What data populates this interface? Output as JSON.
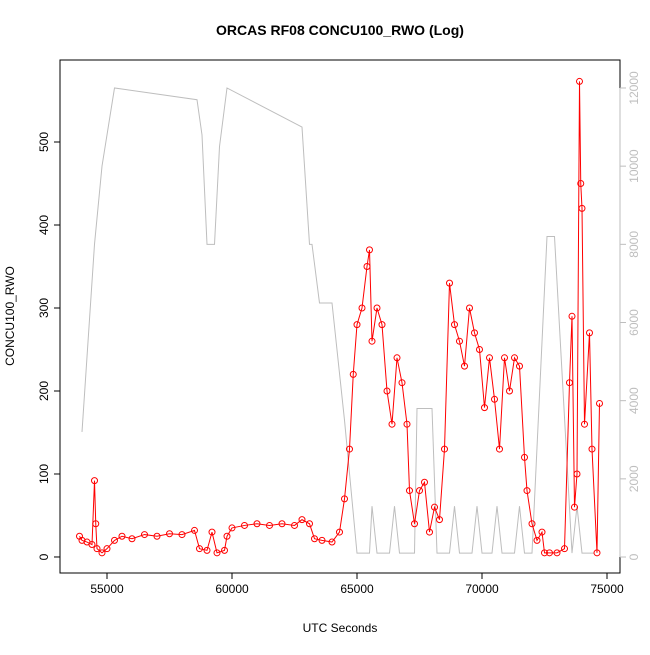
{
  "chart_data": {
    "type": "line",
    "title": "ORCAS RF08 CONCU100_RWO (Log)",
    "x_label": "UTC Seconds",
    "y_label": "CONCU100_RWO",
    "xlim": [
      53120,
      75520
    ],
    "xticks": [
      55000,
      60000,
      65000,
      70000,
      75000
    ],
    "ylim": [
      -19.3,
      598.8
    ],
    "yticks": [
      0,
      100,
      200,
      300,
      400,
      500
    ],
    "y2lim": [
      -409,
      12716
    ],
    "y2ticks": [
      0,
      2000,
      4000,
      6000,
      8000,
      10000,
      12000
    ],
    "series": [
      {
        "color": "#bebebe",
        "axis": "y2",
        "markers": false,
        "x": [
          54000,
          54500,
          54800,
          55300,
          58600,
          58800,
          59000,
          59300,
          59500,
          59800,
          62800,
          63100,
          63200,
          63500,
          64000,
          64500,
          65000,
          65500,
          65600,
          65800,
          66300,
          66500,
          66700,
          67300,
          67400,
          68000,
          68200,
          68700,
          68900,
          69100,
          69600,
          69800,
          70000,
          70400,
          70600,
          70800,
          71300,
          71500,
          71700,
          72000,
          72600,
          72900,
          73600,
          73800,
          74000,
          74500
        ],
        "values": [
          3200,
          8000,
          10000,
          12000,
          11700,
          10800,
          8000,
          8000,
          10500,
          12000,
          11000,
          8000,
          8000,
          6500,
          6500,
          3500,
          100,
          100,
          1300,
          100,
          100,
          1300,
          100,
          100,
          3800,
          3800,
          100,
          100,
          1300,
          100,
          100,
          1300,
          100,
          100,
          1300,
          100,
          100,
          1300,
          100,
          100,
          8200,
          8200,
          100,
          1300,
          100,
          100
        ]
      },
      {
        "color": "#ff0000",
        "axis": "y",
        "markers": true,
        "x": [
          53900,
          54000,
          54200,
          54400,
          54500,
          54550,
          54600,
          54800,
          55000,
          55300,
          55600,
          56000,
          56500,
          57000,
          57500,
          58000,
          58500,
          58700,
          59000,
          59200,
          59400,
          59700,
          59800,
          60000,
          60500,
          61000,
          61500,
          62000,
          62500,
          62800,
          63100,
          63300,
          63600,
          64000,
          64300,
          64500,
          64700,
          64850,
          65000,
          65200,
          65400,
          65500,
          65600,
          65800,
          66000,
          66200,
          66400,
          66600,
          66800,
          67000,
          67100,
          67300,
          67500,
          67700,
          67900,
          68100,
          68300,
          68500,
          68700,
          68900,
          69100,
          69300,
          69500,
          69700,
          69900,
          70100,
          70300,
          70500,
          70700,
          70900,
          71100,
          71300,
          71500,
          71700,
          71800,
          72000,
          72200,
          72400,
          72500,
          72700,
          73000,
          73300,
          73500,
          73600,
          73700,
          73800,
          73900,
          73950,
          74000,
          74100,
          74300,
          74400,
          74600,
          74700
        ],
        "values": [
          25,
          20,
          18,
          15,
          92,
          40,
          10,
          5,
          10,
          20,
          25,
          22,
          27,
          25,
          28,
          27,
          32,
          10,
          8,
          30,
          5,
          8,
          25,
          35,
          38,
          40,
          38,
          40,
          38,
          45,
          40,
          22,
          20,
          18,
          30,
          70,
          130,
          220,
          280,
          300,
          350,
          370,
          260,
          300,
          280,
          200,
          160,
          240,
          210,
          160,
          80,
          40,
          80,
          90,
          30,
          60,
          45,
          130,
          330,
          280,
          260,
          230,
          300,
          270,
          250,
          180,
          240,
          190,
          130,
          240,
          200,
          240,
          230,
          120,
          80,
          40,
          20,
          30,
          5,
          5,
          5,
          10,
          210,
          290,
          60,
          100,
          573,
          450,
          420,
          160,
          270,
          130,
          5,
          185
        ]
      }
    ]
  }
}
